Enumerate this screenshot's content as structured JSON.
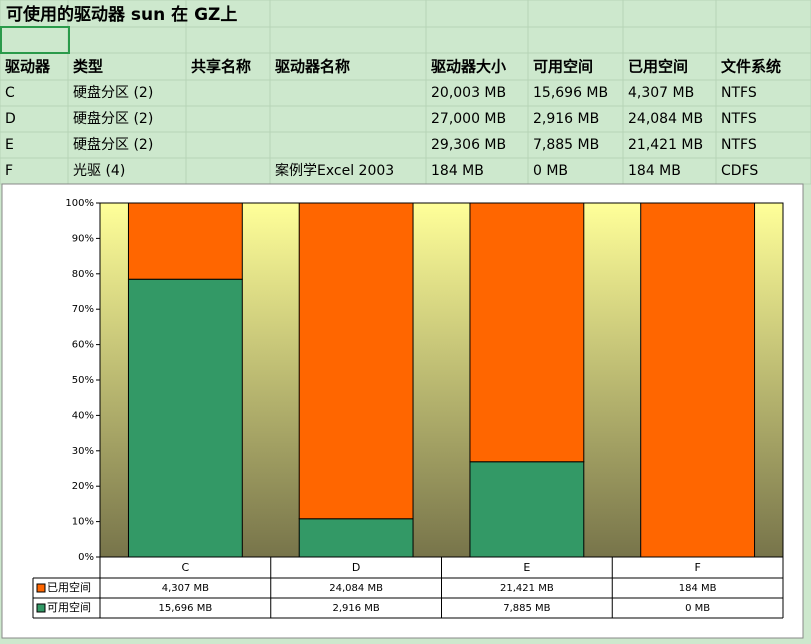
{
  "sheet_title": "可使用的驱动器 sun 在 GZ上",
  "table": {
    "header": [
      "驱动器",
      "类型",
      "共享名称",
      "驱动器名称",
      "驱动器大小",
      "可用空间",
      "已用空间",
      "文件系统"
    ],
    "rows": [
      [
        "C",
        "硬盘分区 (2)",
        "",
        "",
        "20,003 MB",
        "15,696 MB",
        "4,307 MB",
        "NTFS"
      ],
      [
        "D",
        "硬盘分区 (2)",
        "",
        "",
        "27,000 MB",
        "2,916 MB",
        "24,084 MB",
        "NTFS"
      ],
      [
        "E",
        "硬盘分区 (2)",
        "",
        "",
        "29,306 MB",
        "7,885 MB",
        "21,421 MB",
        "NTFS"
      ],
      [
        "F",
        "光驱 (4)",
        "",
        "案例学Excel 2003",
        "184 MB",
        "0 MB",
        "184 MB",
        "CDFS"
      ]
    ]
  },
  "chart_data": {
    "type": "bar",
    "stacking": "percent",
    "categories": [
      "C",
      "D",
      "E",
      "F"
    ],
    "series": [
      {
        "name": "已用空间",
        "color": "#ff6600",
        "values": [
          4307,
          24084,
          21421,
          184
        ],
        "value_labels": [
          "4,307 MB",
          "24,084 MB",
          "21,421 MB",
          "184 MB"
        ]
      },
      {
        "name": "可用空间",
        "color": "#339966",
        "values": [
          15696,
          2916,
          7885,
          0
        ],
        "value_labels": [
          "15,696 MB",
          "2,916 MB",
          "7,885 MB",
          "0 MB"
        ]
      }
    ],
    "ylim": [
      0,
      100
    ],
    "yticks": [
      {
        "value": 0,
        "label": "0%"
      },
      {
        "value": 10,
        "label": "10%"
      },
      {
        "value": 20,
        "label": "20%"
      },
      {
        "value": 30,
        "label": "30%"
      },
      {
        "value": 40,
        "label": "40%"
      },
      {
        "value": 50,
        "label": "50%"
      },
      {
        "value": 60,
        "label": "60%"
      },
      {
        "value": 70,
        "label": "70%"
      },
      {
        "value": 80,
        "label": "80%"
      },
      {
        "value": 90,
        "label": "90%"
      },
      {
        "value": 100,
        "label": "100%"
      }
    ]
  }
}
